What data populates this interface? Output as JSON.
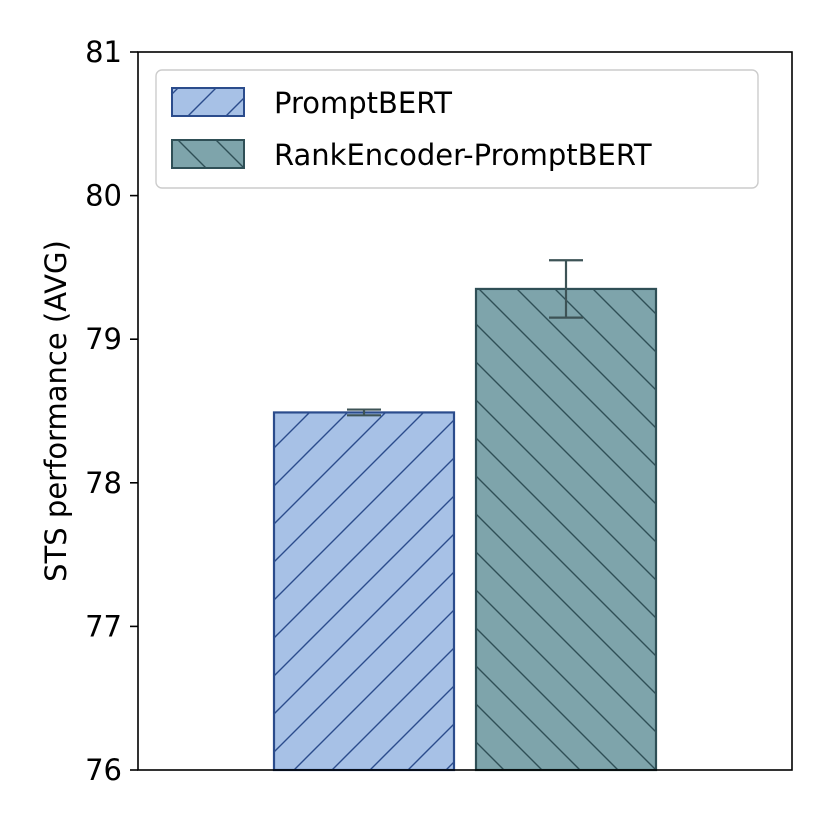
{
  "chart_data": {
    "type": "bar",
    "title": "",
    "xlabel": "",
    "ylabel": "STS performance (AVG)",
    "ylim": [
      76,
      81
    ],
    "yticks": [
      76,
      77,
      78,
      79,
      80,
      81
    ],
    "grid": false,
    "legend_position": "top-left",
    "series": [
      {
        "name": "PromptBERT",
        "value": 78.49,
        "error": 0.02,
        "fill": "#a7c1e6",
        "edge": "#2b4c8c",
        "hatch": "forward"
      },
      {
        "name": "RankEncoder-PromptBERT",
        "value": 79.35,
        "error": 0.2,
        "fill": "#7ea4ab",
        "edge": "#2f4f56",
        "hatch": "backward"
      }
    ]
  }
}
